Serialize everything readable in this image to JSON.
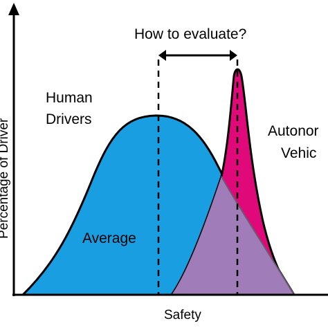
{
  "diagram": {
    "question": "How to evaluate?",
    "human_label_line1": "Human",
    "human_label_line2": "Drivers",
    "average_label": "Average",
    "av_label_line1": "Autonor",
    "av_label_line2": "Vehic",
    "y_axis_label": "Percentage of Driver",
    "x_axis_label": "Safety"
  },
  "colors": {
    "human": "#1a9ee2",
    "autonomous": "#e0097a",
    "overlap": "#a07cb8",
    "axis": "#000000"
  }
}
